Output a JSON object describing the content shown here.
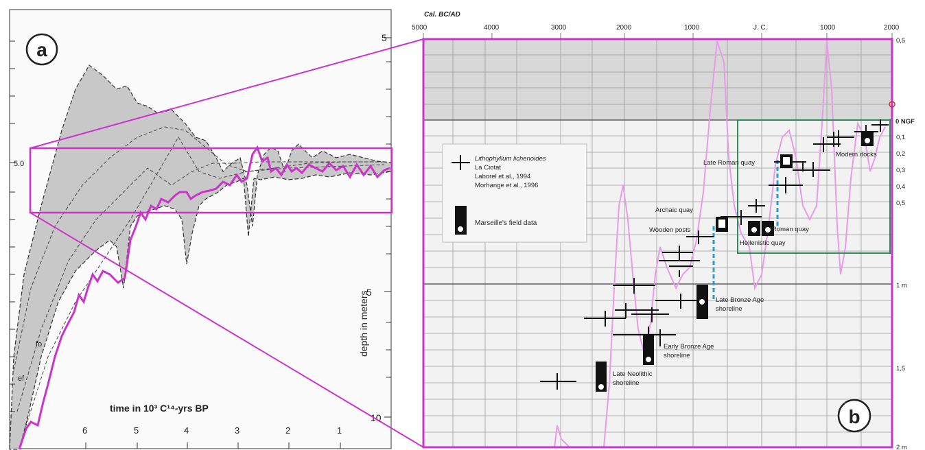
{
  "panel_a": {
    "label": "a",
    "y_axis_title": "depth in meters",
    "x_axis_title": "time in 10³ C¹⁴-yrs BP",
    "x_ticks": [
      "6",
      "5",
      "4",
      "3",
      "2",
      "1"
    ],
    "y_ticks": [
      "5",
      "5",
      "10"
    ],
    "left_tick": "5.0",
    "curve_labels": [
      "fo",
      "ef"
    ]
  },
  "panel_b": {
    "label": "b",
    "top_axis_title": "Cal. BC/AD",
    "top_ticks": [
      "5000",
      "4000",
      "3000",
      "2000",
      "1000",
      "J. C.",
      "1000",
      "2000"
    ],
    "right_ticks": [
      "0,5",
      "0 NGF",
      "0,1",
      "0,2",
      "0,3",
      "0,4",
      "0,5",
      "1 m",
      "1,5",
      "2 m"
    ],
    "legend": {
      "species": "Lithophyllum lichenoides",
      "lines": [
        "La Ciotat",
        "Laborel et al., 1994",
        "Morhange et al., 1996"
      ],
      "field": "Marseille's field data"
    },
    "annotations": [
      "Modern docks",
      "Late Roman quay",
      "Archaic quay",
      "Wooden posts",
      "Roman quay",
      "Hellenistic quay",
      "Late Bronze Age",
      "shoreline",
      "Early Bronze Age",
      "shoreline",
      "Late Neolithic",
      "shoreline"
    ]
  },
  "colors": {
    "magenta": "#cc33cc",
    "green": "#2e8b57",
    "blue_dash": "#2a9bd8",
    "shade": "#c8c8c8"
  }
}
